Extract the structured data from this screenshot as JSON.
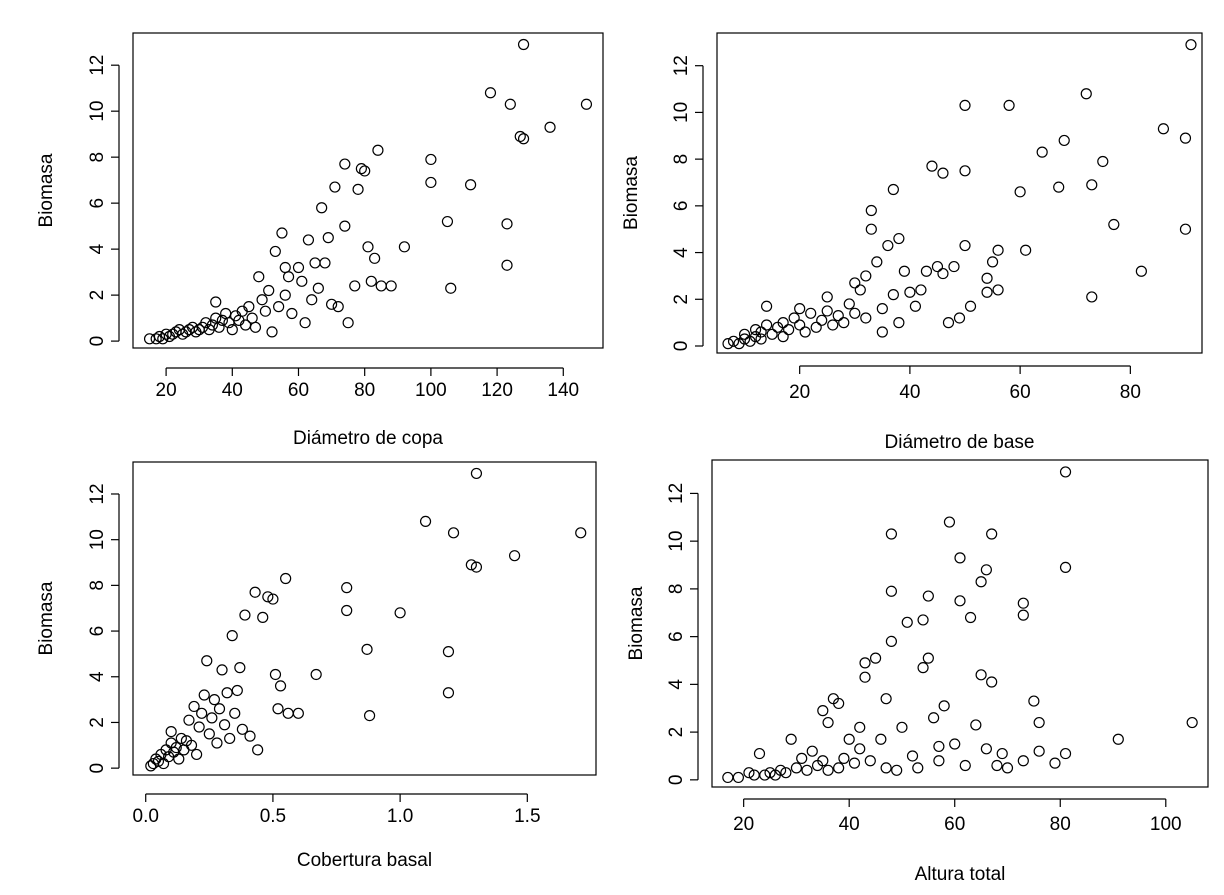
{
  "figure": {
    "description_free": true
  },
  "chart_data": [
    {
      "type": "scatter",
      "xlabel": "Diámetro de copa",
      "ylabel": "Biomasa",
      "xlim": [
        10,
        152
      ],
      "ylim": [
        -0.3,
        13.4
      ],
      "xticks": [
        20,
        40,
        60,
        80,
        100,
        120,
        140
      ],
      "yticks": [
        0,
        2,
        4,
        6,
        8,
        10,
        12
      ],
      "points": [
        [
          15,
          0.1
        ],
        [
          17,
          0.1
        ],
        [
          18,
          0.2
        ],
        [
          19,
          0.1
        ],
        [
          20,
          0.3
        ],
        [
          21,
          0.2
        ],
        [
          22,
          0.3
        ],
        [
          23,
          0.4
        ],
        [
          24,
          0.5
        ],
        [
          25,
          0.3
        ],
        [
          26,
          0.4
        ],
        [
          27,
          0.5
        ],
        [
          28,
          0.6
        ],
        [
          29,
          0.4
        ],
        [
          30,
          0.5
        ],
        [
          31,
          0.6
        ],
        [
          32,
          0.8
        ],
        [
          33,
          0.5
        ],
        [
          34,
          0.7
        ],
        [
          35,
          1.0
        ],
        [
          35,
          1.7
        ],
        [
          36,
          0.6
        ],
        [
          37,
          0.9
        ],
        [
          38,
          1.2
        ],
        [
          39,
          0.8
        ],
        [
          40,
          0.5
        ],
        [
          41,
          1.1
        ],
        [
          42,
          0.9
        ],
        [
          43,
          1.3
        ],
        [
          44,
          0.7
        ],
        [
          45,
          1.5
        ],
        [
          46,
          1.0
        ],
        [
          47,
          0.6
        ],
        [
          48,
          2.8
        ],
        [
          49,
          1.8
        ],
        [
          50,
          1.3
        ],
        [
          51,
          2.2
        ],
        [
          52,
          0.4
        ],
        [
          53,
          3.9
        ],
        [
          54,
          1.5
        ],
        [
          55,
          4.7
        ],
        [
          56,
          3.2
        ],
        [
          56,
          2.0
        ],
        [
          57,
          2.8
        ],
        [
          58,
          1.2
        ],
        [
          60,
          3.2
        ],
        [
          61,
          2.6
        ],
        [
          62,
          0.8
        ],
        [
          63,
          4.4
        ],
        [
          64,
          1.8
        ],
        [
          65,
          3.4
        ],
        [
          66,
          2.3
        ],
        [
          67,
          5.8
        ],
        [
          68,
          3.4
        ],
        [
          69,
          4.5
        ],
        [
          70,
          1.6
        ],
        [
          71,
          6.7
        ],
        [
          72,
          1.5
        ],
        [
          74,
          7.7
        ],
        [
          74,
          5.0
        ],
        [
          75,
          0.8
        ],
        [
          77,
          2.4
        ],
        [
          78,
          6.6
        ],
        [
          79,
          7.5
        ],
        [
          80,
          7.4
        ],
        [
          81,
          4.1
        ],
        [
          82,
          2.6
        ],
        [
          83,
          3.6
        ],
        [
          84,
          8.3
        ],
        [
          85,
          2.4
        ],
        [
          88,
          2.4
        ],
        [
          92,
          4.1
        ],
        [
          100,
          7.9
        ],
        [
          100,
          6.9
        ],
        [
          105,
          5.2
        ],
        [
          106,
          2.3
        ],
        [
          112,
          6.8
        ],
        [
          118,
          10.8
        ],
        [
          123,
          5.1
        ],
        [
          123,
          3.3
        ],
        [
          124,
          10.3
        ],
        [
          127,
          8.9
        ],
        [
          128,
          12.9
        ],
        [
          128,
          8.8
        ],
        [
          136,
          9.3
        ],
        [
          147,
          10.3
        ]
      ]
    },
    {
      "type": "scatter",
      "xlabel": "Diámetro de base",
      "ylabel": "Biomasa",
      "xlim": [
        5,
        93
      ],
      "ylim": [
        -0.3,
        13.4
      ],
      "xticks": [
        20,
        40,
        60,
        80
      ],
      "yticks": [
        0,
        2,
        4,
        6,
        8,
        10,
        12
      ],
      "points": [
        [
          7,
          0.1
        ],
        [
          8,
          0.2
        ],
        [
          9,
          0.1
        ],
        [
          10,
          0.3
        ],
        [
          10,
          0.5
        ],
        [
          11,
          0.2
        ],
        [
          12,
          0.4
        ],
        [
          12,
          0.7
        ],
        [
          13,
          0.3
        ],
        [
          13,
          0.6
        ],
        [
          14,
          0.9
        ],
        [
          14,
          1.7
        ],
        [
          15,
          0.5
        ],
        [
          16,
          0.8
        ],
        [
          17,
          0.4
        ],
        [
          17,
          1.0
        ],
        [
          18,
          0.7
        ],
        [
          19,
          1.2
        ],
        [
          20,
          0.9
        ],
        [
          20,
          1.6
        ],
        [
          21,
          0.6
        ],
        [
          22,
          1.4
        ],
        [
          23,
          0.8
        ],
        [
          24,
          1.1
        ],
        [
          25,
          1.5
        ],
        [
          25,
          2.1
        ],
        [
          26,
          0.9
        ],
        [
          27,
          1.3
        ],
        [
          28,
          1.0
        ],
        [
          29,
          1.8
        ],
        [
          30,
          2.7
        ],
        [
          30,
          1.4
        ],
        [
          31,
          2.4
        ],
        [
          32,
          3.0
        ],
        [
          32,
          1.2
        ],
        [
          33,
          5.0
        ],
        [
          33,
          5.8
        ],
        [
          34,
          3.6
        ],
        [
          35,
          1.6
        ],
        [
          35,
          0.6
        ],
        [
          36,
          4.3
        ],
        [
          37,
          6.7
        ],
        [
          37,
          2.2
        ],
        [
          38,
          4.6
        ],
        [
          38,
          1.0
        ],
        [
          39,
          3.2
        ],
        [
          40,
          2.3
        ],
        [
          41,
          1.7
        ],
        [
          42,
          2.4
        ],
        [
          43,
          3.2
        ],
        [
          44,
          7.7
        ],
        [
          45,
          3.4
        ],
        [
          46,
          7.4
        ],
        [
          46,
          3.1
        ],
        [
          47,
          1.0
        ],
        [
          48,
          3.4
        ],
        [
          49,
          1.2
        ],
        [
          50,
          10.3
        ],
        [
          50,
          7.5
        ],
        [
          50,
          4.3
        ],
        [
          51,
          1.7
        ],
        [
          54,
          2.9
        ],
        [
          54,
          2.3
        ],
        [
          55,
          3.6
        ],
        [
          56,
          4.1
        ],
        [
          56,
          2.4
        ],
        [
          58,
          10.3
        ],
        [
          60,
          6.6
        ],
        [
          61,
          4.1
        ],
        [
          64,
          8.3
        ],
        [
          67,
          6.8
        ],
        [
          68,
          8.8
        ],
        [
          72,
          10.8
        ],
        [
          73,
          6.9
        ],
        [
          73,
          2.1
        ],
        [
          75,
          7.9
        ],
        [
          77,
          5.2
        ],
        [
          82,
          3.2
        ],
        [
          86,
          9.3
        ],
        [
          90,
          5.0
        ],
        [
          90,
          8.9
        ],
        [
          91,
          12.9
        ]
      ]
    },
    {
      "type": "scatter",
      "xlabel": "Cobertura basal",
      "ylabel": "Biomasa",
      "xlim": [
        -0.05,
        1.77
      ],
      "ylim": [
        -0.3,
        13.4
      ],
      "xticks": [
        "0.0",
        "0.5",
        "1.0",
        "1.5"
      ],
      "yticks": [
        0,
        2,
        4,
        6,
        8,
        10,
        12
      ],
      "points": [
        [
          0.02,
          0.1
        ],
        [
          0.03,
          0.2
        ],
        [
          0.04,
          0.4
        ],
        [
          0.05,
          0.3
        ],
        [
          0.06,
          0.6
        ],
        [
          0.07,
          0.2
        ],
        [
          0.08,
          0.8
        ],
        [
          0.09,
          0.5
        ],
        [
          0.1,
          1.1
        ],
        [
          0.1,
          1.6
        ],
        [
          0.11,
          0.7
        ],
        [
          0.12,
          0.9
        ],
        [
          0.13,
          0.4
        ],
        [
          0.14,
          1.3
        ],
        [
          0.15,
          0.8
        ],
        [
          0.16,
          1.2
        ],
        [
          0.17,
          2.1
        ],
        [
          0.18,
          1.0
        ],
        [
          0.19,
          2.7
        ],
        [
          0.2,
          0.6
        ],
        [
          0.21,
          1.8
        ],
        [
          0.22,
          2.4
        ],
        [
          0.23,
          3.2
        ],
        [
          0.24,
          4.7
        ],
        [
          0.25,
          1.5
        ],
        [
          0.26,
          2.2
        ],
        [
          0.27,
          3.0
        ],
        [
          0.28,
          1.1
        ],
        [
          0.29,
          2.6
        ],
        [
          0.3,
          4.3
        ],
        [
          0.31,
          1.9
        ],
        [
          0.32,
          3.3
        ],
        [
          0.33,
          1.3
        ],
        [
          0.34,
          5.8
        ],
        [
          0.35,
          2.4
        ],
        [
          0.36,
          3.4
        ],
        [
          0.37,
          4.4
        ],
        [
          0.38,
          1.7
        ],
        [
          0.39,
          6.7
        ],
        [
          0.41,
          1.4
        ],
        [
          0.43,
          7.7
        ],
        [
          0.44,
          0.8
        ],
        [
          0.46,
          6.6
        ],
        [
          0.48,
          7.5
        ],
        [
          0.5,
          7.4
        ],
        [
          0.51,
          4.1
        ],
        [
          0.52,
          2.6
        ],
        [
          0.53,
          3.6
        ],
        [
          0.55,
          8.3
        ],
        [
          0.56,
          2.4
        ],
        [
          0.6,
          2.4
        ],
        [
          0.67,
          4.1
        ],
        [
          0.79,
          7.9
        ],
        [
          0.79,
          6.9
        ],
        [
          0.87,
          5.2
        ],
        [
          0.88,
          2.3
        ],
        [
          1.0,
          6.8
        ],
        [
          1.1,
          10.8
        ],
        [
          1.19,
          5.1
        ],
        [
          1.19,
          3.3
        ],
        [
          1.21,
          10.3
        ],
        [
          1.28,
          8.9
        ],
        [
          1.3,
          12.9
        ],
        [
          1.3,
          8.8
        ],
        [
          1.45,
          9.3
        ],
        [
          1.71,
          10.3
        ]
      ]
    },
    {
      "type": "scatter",
      "xlabel": "Altura total",
      "ylabel": "Biomasa",
      "xlim": [
        14,
        108
      ],
      "ylim": [
        -0.3,
        13.4
      ],
      "xticks": [
        20,
        40,
        60,
        80,
        100
      ],
      "yticks": [
        0,
        2,
        4,
        6,
        8,
        10,
        12
      ],
      "points": [
        [
          17,
          0.1
        ],
        [
          19,
          0.1
        ],
        [
          21,
          0.3
        ],
        [
          22,
          0.2
        ],
        [
          23,
          1.1
        ],
        [
          24,
          0.2
        ],
        [
          25,
          0.3
        ],
        [
          26,
          0.2
        ],
        [
          27,
          0.4
        ],
        [
          28,
          0.3
        ],
        [
          29,
          1.7
        ],
        [
          30,
          0.5
        ],
        [
          31,
          0.9
        ],
        [
          32,
          0.4
        ],
        [
          33,
          1.2
        ],
        [
          34,
          0.6
        ],
        [
          35,
          0.8
        ],
        [
          35,
          2.9
        ],
        [
          36,
          0.4
        ],
        [
          36,
          2.4
        ],
        [
          37,
          3.4
        ],
        [
          38,
          0.5
        ],
        [
          38,
          3.2
        ],
        [
          39,
          0.9
        ],
        [
          40,
          1.7
        ],
        [
          41,
          0.7
        ],
        [
          42,
          1.3
        ],
        [
          42,
          2.2
        ],
        [
          43,
          4.3
        ],
        [
          43,
          4.9
        ],
        [
          44,
          0.8
        ],
        [
          45,
          5.1
        ],
        [
          46,
          1.7
        ],
        [
          47,
          3.4
        ],
        [
          47,
          0.5
        ],
        [
          48,
          5.8
        ],
        [
          48,
          7.9
        ],
        [
          48,
          10.3
        ],
        [
          49,
          0.4
        ],
        [
          50,
          2.2
        ],
        [
          51,
          6.6
        ],
        [
          52,
          1.0
        ],
        [
          53,
          0.5
        ],
        [
          54,
          4.7
        ],
        [
          54,
          6.7
        ],
        [
          55,
          7.7
        ],
        [
          55,
          5.1
        ],
        [
          56,
          2.6
        ],
        [
          57,
          1.4
        ],
        [
          57,
          0.8
        ],
        [
          58,
          3.1
        ],
        [
          59,
          10.8
        ],
        [
          60,
          1.5
        ],
        [
          61,
          9.3
        ],
        [
          61,
          7.5
        ],
        [
          62,
          0.6
        ],
        [
          63,
          6.8
        ],
        [
          64,
          2.3
        ],
        [
          65,
          8.3
        ],
        [
          65,
          4.4
        ],
        [
          66,
          8.8
        ],
        [
          66,
          1.3
        ],
        [
          67,
          10.3
        ],
        [
          67,
          4.1
        ],
        [
          68,
          0.6
        ],
        [
          69,
          1.1
        ],
        [
          70,
          0.5
        ],
        [
          73,
          7.4
        ],
        [
          73,
          6.9
        ],
        [
          73,
          0.8
        ],
        [
          75,
          3.3
        ],
        [
          76,
          2.4
        ],
        [
          76,
          1.2
        ],
        [
          79,
          0.7
        ],
        [
          81,
          12.9
        ],
        [
          81,
          8.9
        ],
        [
          81,
          1.1
        ],
        [
          91,
          1.7
        ],
        [
          105,
          2.4
        ]
      ]
    }
  ]
}
